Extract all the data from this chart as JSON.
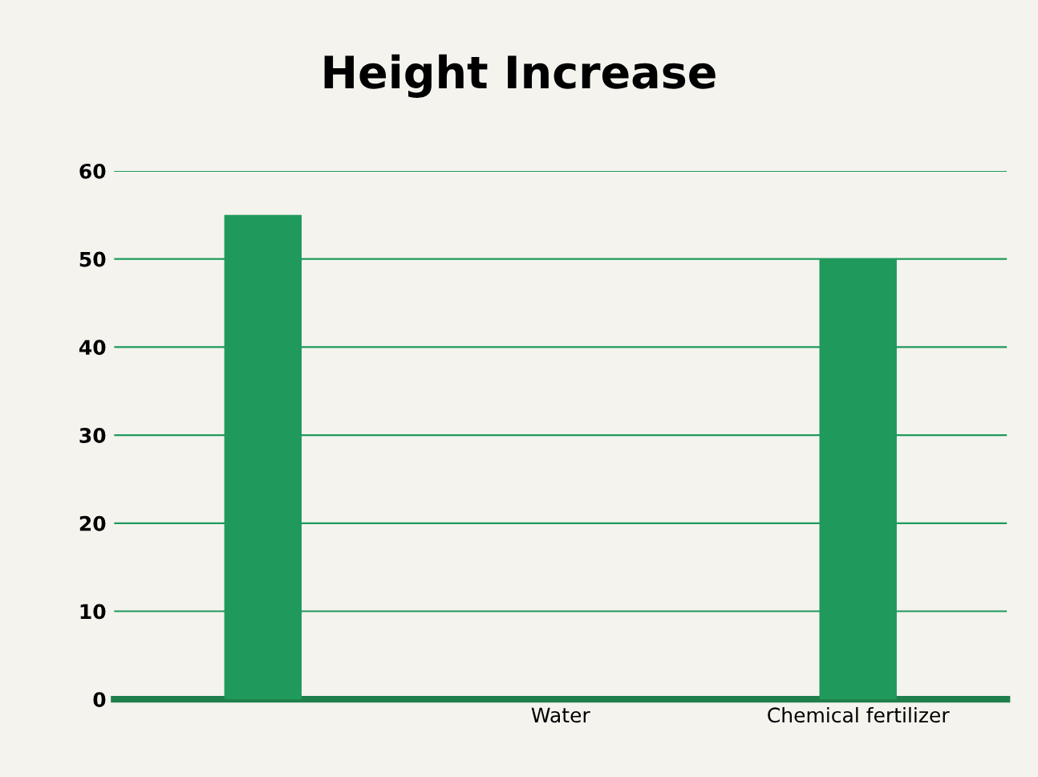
{
  "chart_data": {
    "type": "bar",
    "title": "Height Increase",
    "categories": [
      null,
      "Water",
      "Chemical fertilizer"
    ],
    "values": [
      55,
      0,
      50
    ],
    "color": "#1f9a5c",
    "ylim": [
      0,
      60
    ],
    "yticks": [
      0,
      10,
      20,
      30,
      40,
      50,
      60
    ],
    "grid": "y"
  }
}
